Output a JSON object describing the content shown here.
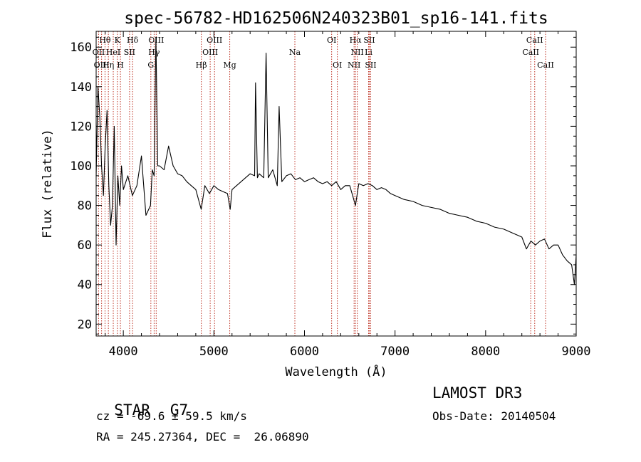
{
  "chart_data": {
    "type": "line",
    "title": "spec-56782-HD162506N240323B01_sp16-141.fits",
    "xlabel": "Wavelength (Å)",
    "ylabel": "Flux (relative)",
    "xlim": [
      3700,
      9000
    ],
    "ylim": [
      14,
      168
    ],
    "xticks": [
      4000,
      5000,
      6000,
      7000,
      8000,
      9000
    ],
    "yticks": [
      20,
      40,
      60,
      80,
      100,
      120,
      140,
      160
    ],
    "grid": false,
    "series": [
      {
        "name": "spectrum",
        "x": [
          3700,
          3720,
          3740,
          3760,
          3780,
          3800,
          3820,
          3840,
          3860,
          3880,
          3900,
          3920,
          3940,
          3960,
          3980,
          4000,
          4050,
          4100,
          4150,
          4200,
          4250,
          4300,
          4320,
          4340,
          4360,
          4380,
          4400,
          4450,
          4500,
          4550,
          4600,
          4650,
          4700,
          4750,
          4800,
          4860,
          4900,
          4950,
          5000,
          5050,
          5100,
          5150,
          5180,
          5200,
          5250,
          5300,
          5350,
          5400,
          5450,
          5460,
          5480,
          5500,
          5550,
          5576,
          5600,
          5650,
          5700,
          5720,
          5750,
          5800,
          5850,
          5900,
          5950,
          6000,
          6050,
          6100,
          6150,
          6200,
          6250,
          6300,
          6350,
          6400,
          6450,
          6500,
          6563,
          6600,
          6650,
          6700,
          6750,
          6800,
          6850,
          6900,
          6950,
          7000,
          7100,
          7200,
          7300,
          7400,
          7500,
          7600,
          7700,
          7800,
          7900,
          8000,
          8100,
          8200,
          8300,
          8400,
          8450,
          8500,
          8550,
          8600,
          8650,
          8700,
          8750,
          8800,
          8850,
          8900,
          8950,
          8980,
          9000
        ],
        "values": [
          95,
          140,
          125,
          100,
          85,
          110,
          128,
          90,
          70,
          80,
          120,
          60,
          95,
          80,
          100,
          88,
          95,
          85,
          90,
          105,
          75,
          80,
          98,
          95,
          165,
          100,
          100,
          98,
          110,
          100,
          96,
          95,
          92,
          90,
          88,
          78,
          90,
          86,
          90,
          88,
          87,
          86,
          78,
          88,
          90,
          92,
          94,
          96,
          95,
          142,
          94,
          96,
          94,
          157,
          94,
          98,
          90,
          130,
          92,
          95,
          96,
          93,
          94,
          92,
          93,
          94,
          92,
          91,
          92,
          90,
          92,
          88,
          90,
          90,
          80,
          91,
          90,
          91,
          90,
          88,
          89,
          88,
          86,
          85,
          83,
          82,
          80,
          79,
          78,
          76,
          75,
          74,
          72,
          71,
          69,
          68,
          66,
          64,
          58,
          62,
          60,
          62,
          63,
          58,
          60,
          60,
          55,
          52,
          50,
          40,
          55
        ]
      }
    ],
    "spectral_lines": [
      {
        "label": "Hθ",
        "wavelength": 3798,
        "row": 1
      },
      {
        "label": "OII",
        "wavelength": 3727,
        "row": 2
      },
      {
        "label": "HeI",
        "wavelength": 3889,
        "row": 2
      },
      {
        "label": "K",
        "wavelength": 3934,
        "row": 1
      },
      {
        "label": "SII",
        "wavelength": 4069,
        "row": 2
      },
      {
        "label": "Hδ",
        "wavelength": 4102,
        "row": 1
      },
      {
        "label": "OIII",
        "wavelength": 4363,
        "row": 1
      },
      {
        "label": "Hγ",
        "wavelength": 4340,
        "row": 2
      },
      {
        "label": "OIII",
        "wavelength": 3760,
        "row": 3
      },
      {
        "label": "Hη",
        "wavelength": 3835,
        "row": 3
      },
      {
        "label": "H",
        "wavelength": 3968,
        "row": 3
      },
      {
        "label": "G",
        "wavelength": 4304,
        "row": 3
      },
      {
        "label": "Hβ",
        "wavelength": 4861,
        "row": 3
      },
      {
        "label": "OIII",
        "wavelength": 5007,
        "row": 1
      },
      {
        "label": "OIII",
        "wavelength": 4959,
        "row": 2
      },
      {
        "label": "Mg",
        "wavelength": 5175,
        "row": 3
      },
      {
        "label": "Na",
        "wavelength": 5894,
        "row": 2
      },
      {
        "label": "OI",
        "wavelength": 6300,
        "row": 1
      },
      {
        "label": "OI",
        "wavelength": 6363,
        "row": 3
      },
      {
        "label": "Hα",
        "wavelength": 6563,
        "row": 1
      },
      {
        "label": "NII",
        "wavelength": 6583,
        "row": 2
      },
      {
        "label": "NII",
        "wavelength": 6548,
        "row": 3
      },
      {
        "label": "SII",
        "wavelength": 6716,
        "row": 1
      },
      {
        "label": "Li",
        "wavelength": 6708,
        "row": 2
      },
      {
        "label": "SII",
        "wavelength": 6731,
        "row": 3
      },
      {
        "label": "CaII",
        "wavelength": 8542,
        "row": 1
      },
      {
        "label": "CaII",
        "wavelength": 8498,
        "row": 2
      },
      {
        "label": "CaII",
        "wavelength": 8662,
        "row": 3
      }
    ]
  },
  "info": {
    "class_label": "STAR",
    "subclass": "G7",
    "survey": "LAMOST DR3",
    "cz_text": "cz = -69.6 ± 59.5 km/s",
    "obs_date": "Obs-Date: 20140504",
    "radec_text": "RA = 245.27364, DEC =  26.06890"
  }
}
